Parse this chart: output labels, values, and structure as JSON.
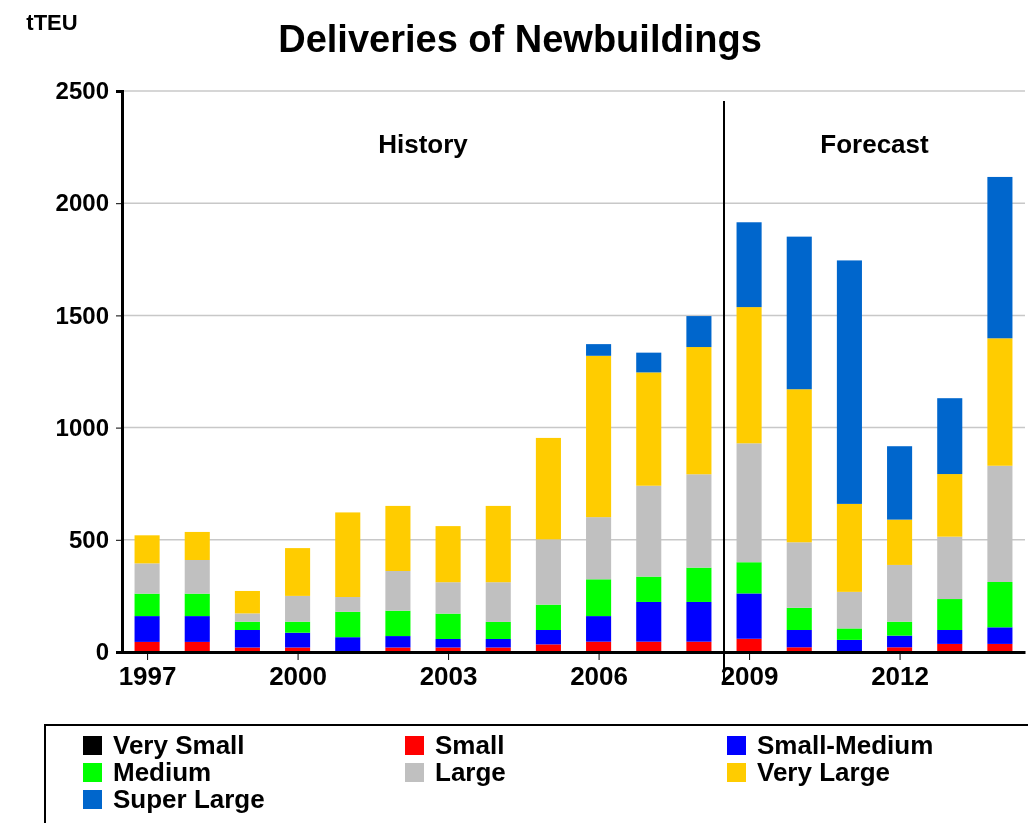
{
  "chart_data": {
    "type": "bar",
    "title": "Deliveries of Newbuildings",
    "ylabel": "tTEU",
    "stacked": true,
    "x": [
      1997,
      1998,
      1999,
      2000,
      2001,
      2002,
      2003,
      2004,
      2005,
      2006,
      2007,
      2008,
      2009,
      2010,
      2011,
      2012,
      2013,
      2014
    ],
    "xlim": [
      1996.5,
      2014.5
    ],
    "xticks": [
      1997,
      2000,
      2003,
      2006,
      2009,
      2012
    ],
    "ylim": [
      0,
      2500
    ],
    "yticks": [
      0,
      500,
      1000,
      1500,
      2000,
      2500
    ],
    "grid": "y",
    "legend": "bottom",
    "series": [
      {
        "name": "Very Small",
        "color": "#000000",
        "values": [
          0,
          0,
          0,
          0,
          0,
          0,
          0,
          0,
          0,
          0,
          0,
          0,
          0,
          0,
          0,
          0,
          0,
          0
        ]
      },
      {
        "name": "Small",
        "color": "#ff0000",
        "values": [
          45,
          45,
          20,
          20,
          null,
          20,
          20,
          20,
          34,
          46,
          46,
          46,
          59,
          21,
          null,
          21,
          36,
          36
        ]
      },
      {
        "name": "Small-Medium",
        "color": "#0000ff",
        "values": [
          115,
          115,
          78,
          66,
          66,
          51,
          38,
          38,
          64,
          114,
          177,
          177,
          202,
          77,
          54,
          52,
          62,
          74
        ]
      },
      {
        "name": "Medium",
        "color": "#00ff00",
        "values": [
          100,
          100,
          37,
          49,
          113,
          113,
          113,
          76,
          113,
          164,
          113,
          153,
          139,
          99,
          51,
          62,
          138,
          202
        ]
      },
      {
        "name": "Large",
        "color": "#c0c0c0",
        "values": [
          135,
          150,
          37,
          115,
          66,
          177,
          140,
          177,
          291,
          277,
          405,
          416,
          530,
          292,
          163,
          253,
          278,
          518
        ]
      },
      {
        "name": "Very Large",
        "color": "#ffcc00",
        "values": [
          125,
          125,
          100,
          213,
          377,
          290,
          250,
          340,
          452,
          719,
          505,
          567,
          607,
          682,
          392,
          202,
          279,
          568
        ]
      },
      {
        "name": "Super Large",
        "color": "#0066cc",
        "values": [
          0,
          0,
          0,
          0,
          0,
          0,
          0,
          0,
          0,
          52,
          88,
          138,
          378,
          680,
          1085,
          327,
          338,
          719
        ]
      }
    ],
    "ref_lines": [
      {
        "axis": "x",
        "value": 2008.5,
        "color": "#000000"
      }
    ],
    "annotations": [
      "History",
      "Forecast"
    ]
  }
}
